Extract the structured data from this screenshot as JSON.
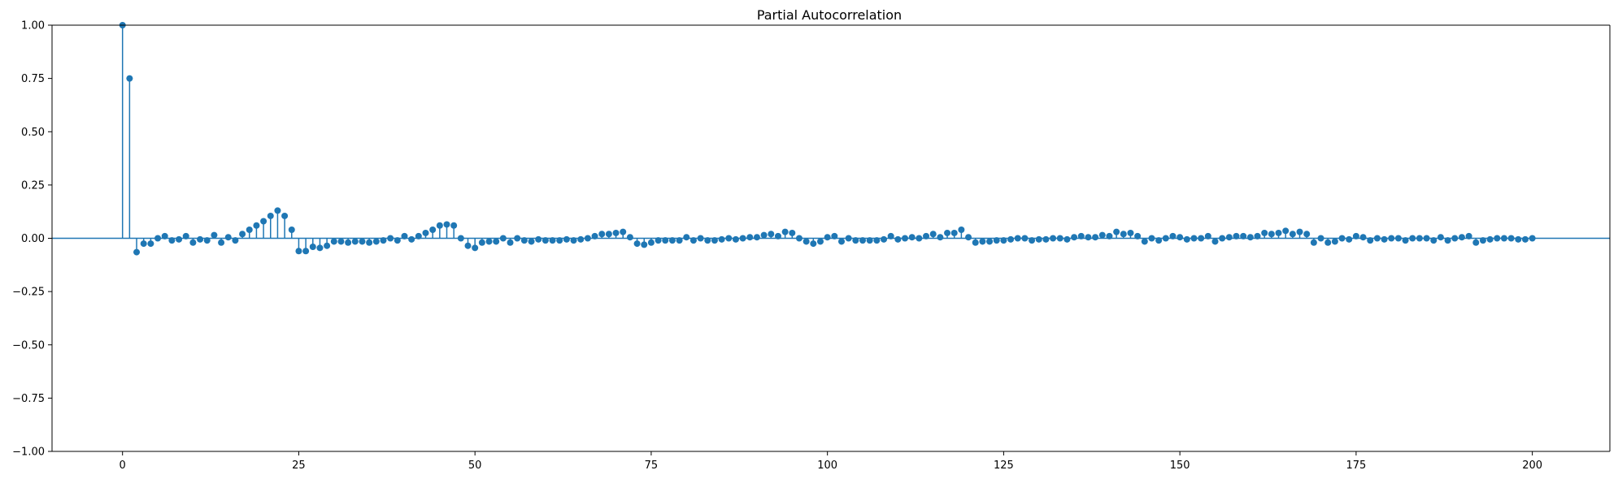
{
  "chart_data": {
    "type": "stem",
    "title": "Partial Autocorrelation",
    "xlabel": "",
    "ylabel": "",
    "xlim": [
      -10,
      211
    ],
    "ylim": [
      -1.0,
      1.0
    ],
    "grid": false,
    "x_ticks": [
      0,
      25,
      50,
      75,
      100,
      125,
      150,
      175,
      200
    ],
    "y_ticks": [
      -1.0,
      -0.75,
      -0.5,
      -0.25,
      0.0,
      0.25,
      0.5,
      0.75,
      1.0
    ],
    "x_tick_labels": [
      "0",
      "25",
      "50",
      "75",
      "100",
      "125",
      "150",
      "175",
      "200"
    ],
    "y_tick_labels": [
      "−1.00",
      "−0.75",
      "−0.50",
      "−0.25",
      "0.00",
      "0.25",
      "0.50",
      "0.75",
      "1.00"
    ],
    "color": "#1f77b4",
    "lags_start": 0,
    "values": [
      1.0,
      0.75,
      -0.065,
      -0.025,
      -0.025,
      0.0,
      0.01,
      -0.01,
      -0.005,
      0.01,
      -0.02,
      -0.005,
      -0.01,
      0.015,
      -0.02,
      0.005,
      -0.01,
      0.02,
      0.04,
      0.06,
      0.08,
      0.105,
      0.13,
      0.105,
      0.04,
      -0.06,
      -0.06,
      -0.04,
      -0.045,
      -0.035,
      -0.015,
      -0.015,
      -0.02,
      -0.015,
      -0.015,
      -0.02,
      -0.015,
      -0.01,
      0.0,
      -0.01,
      0.01,
      -0.005,
      0.01,
      0.025,
      0.04,
      0.06,
      0.065,
      0.06,
      0.0,
      -0.035,
      -0.045,
      -0.02,
      -0.015,
      -0.015,
      0.0,
      -0.02,
      0.0,
      -0.01,
      -0.015,
      -0.005,
      -0.01,
      -0.01,
      -0.01,
      -0.005,
      -0.01,
      -0.005,
      0.0,
      0.01,
      0.02,
      0.02,
      0.025,
      0.03,
      0.005,
      -0.025,
      -0.03,
      -0.02,
      -0.01,
      -0.01,
      -0.01,
      -0.01,
      0.005,
      -0.01,
      0.0,
      -0.01,
      -0.01,
      -0.005,
      0.0,
      -0.005,
      0.0,
      0.005,
      0.005,
      0.015,
      0.02,
      0.01,
      0.03,
      0.025,
      0.0,
      -0.015,
      -0.025,
      -0.015,
      0.005,
      0.01,
      -0.015,
      0.0,
      -0.01,
      -0.01,
      -0.01,
      -0.01,
      -0.005,
      0.01,
      -0.005,
      0.0,
      0.005,
      0.0,
      0.01,
      0.02,
      0.005,
      0.025,
      0.025,
      0.04,
      0.005,
      -0.02,
      -0.015,
      -0.015,
      -0.01,
      -0.01,
      -0.005,
      0.0,
      0.0,
      -0.01,
      -0.005,
      -0.005,
      0.0,
      0.0,
      -0.005,
      0.005,
      0.01,
      0.005,
      0.005,
      0.015,
      0.01,
      0.03,
      0.02,
      0.025,
      0.01,
      -0.015,
      0.0,
      -0.01,
      0.0,
      0.01,
      0.005,
      -0.005,
      0.0,
      0.0,
      0.01,
      -0.015,
      0.0,
      0.005,
      0.01,
      0.01,
      0.005,
      0.01,
      0.025,
      0.02,
      0.025,
      0.035,
      0.02,
      0.03,
      0.02,
      -0.02,
      0.0,
      -0.02,
      -0.015,
      0.0,
      -0.005,
      0.01,
      0.005,
      -0.01,
      0.0,
      -0.005,
      0.0,
      0.0,
      -0.01,
      0.0,
      0.0,
      0.0,
      -0.01,
      0.005,
      -0.01,
      0.0,
      0.005,
      0.01,
      -0.02,
      -0.01,
      -0.005,
      0.0,
      0.0,
      0.0,
      -0.005,
      -0.005,
      0.0
    ]
  }
}
